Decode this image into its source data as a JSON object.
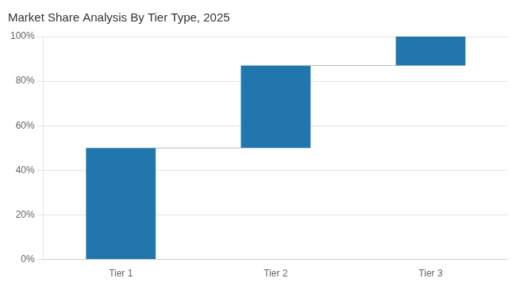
{
  "chart_data": {
    "type": "bar",
    "title": "Market Share Analysis By Tier Type, 2025",
    "categories": [
      "Tier 1",
      "Tier 2",
      "Tier 3"
    ],
    "values": [
      50,
      37,
      13
    ],
    "bottoms": [
      0,
      50,
      87
    ],
    "color": "#2176AE",
    "ylim": [
      0,
      100
    ],
    "yticks": [
      {
        "value": 0,
        "label": "0%"
      },
      {
        "value": 20,
        "label": "20%"
      },
      {
        "value": 40,
        "label": "40%"
      },
      {
        "value": 60,
        "label": "60%"
      },
      {
        "value": 80,
        "label": "80%"
      },
      {
        "value": 100,
        "label": "100%"
      }
    ],
    "grid": true
  }
}
